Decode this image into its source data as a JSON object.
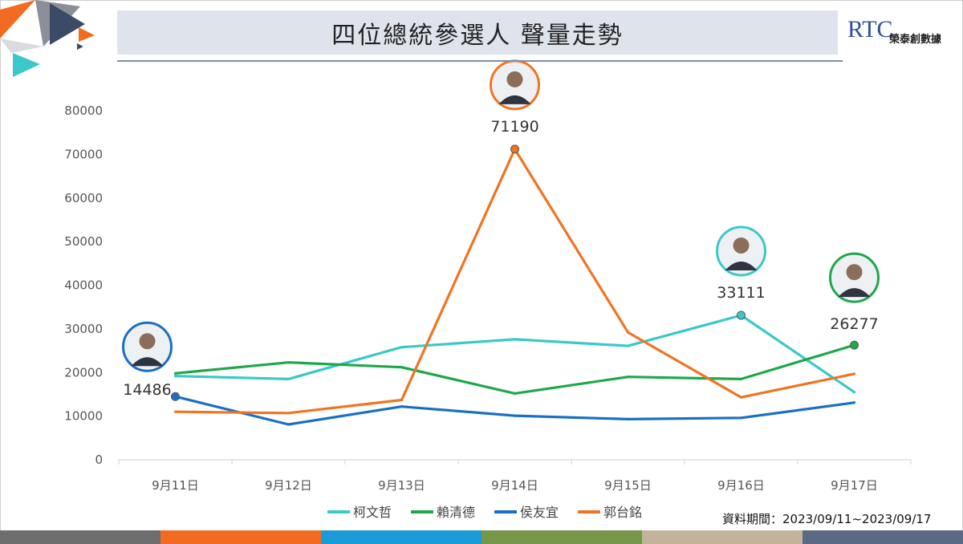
{
  "header": {
    "title": "四位總統參選人 聲量走勢"
  },
  "logo": {
    "mark": "RTC",
    "name": "榮泰創數據"
  },
  "period": "資料期間：2023/09/11~2023/09/17",
  "colors": {
    "stripe": [
      "#6e6e6e",
      "#f26b21",
      "#1a9bd7",
      "#74974a",
      "#c4b39b",
      "#5a6a84"
    ]
  },
  "chart_data": {
    "type": "line",
    "categories": [
      "9月11日",
      "9月12日",
      "9月13日",
      "9月14日",
      "9月15日",
      "9月16日",
      "9月17日"
    ],
    "ylim": [
      0,
      80000
    ],
    "yticks": [
      "0",
      "10000",
      "20000",
      "30000",
      "40000",
      "50000",
      "60000",
      "70000",
      "80000"
    ],
    "grid": false,
    "legend_position": "bottom",
    "series": [
      {
        "name": "柯文哲",
        "color": "#3cc8c8",
        "values": [
          19200,
          18500,
          25800,
          27600,
          26100,
          33111,
          15500
        ]
      },
      {
        "name": "賴清德",
        "color": "#1fa84a",
        "values": [
          19800,
          22300,
          21200,
          15200,
          19000,
          18500,
          26277
        ]
      },
      {
        "name": "侯友宜",
        "color": "#1a6fc4",
        "values": [
          14486,
          8100,
          12200,
          10100,
          9300,
          9600,
          13100
        ]
      },
      {
        "name": "郭台銘",
        "color": "#f07422",
        "values": [
          11000,
          10700,
          13700,
          71190,
          29200,
          14300,
          19700
        ]
      }
    ],
    "annotations": [
      {
        "series": 2,
        "index": 0,
        "text": "14486",
        "photo": "candidate-portrait-icon"
      },
      {
        "series": 3,
        "index": 3,
        "text": "71190",
        "photo": "candidate-portrait-icon"
      },
      {
        "series": 0,
        "index": 5,
        "text": "33111",
        "photo": "candidate-portrait-icon"
      },
      {
        "series": 1,
        "index": 6,
        "text": "26277",
        "photo": "candidate-portrait-icon"
      }
    ]
  }
}
